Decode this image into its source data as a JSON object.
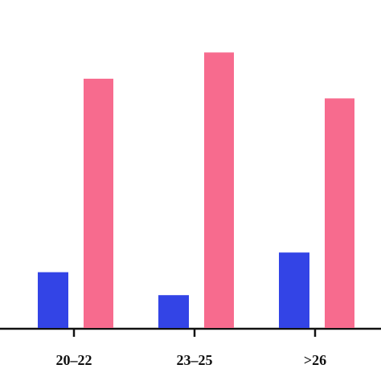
{
  "chart_data": {
    "type": "bar",
    "categories": [
      "20–22",
      "23–25",
      ">26"
    ],
    "series": [
      {
        "color": "#3344e6",
        "values": [
          17,
          10,
          23
        ]
      },
      {
        "color": "#f76b8e",
        "values": [
          76,
          84,
          70
        ]
      }
    ],
    "ylim": [
      0,
      100
    ]
  }
}
